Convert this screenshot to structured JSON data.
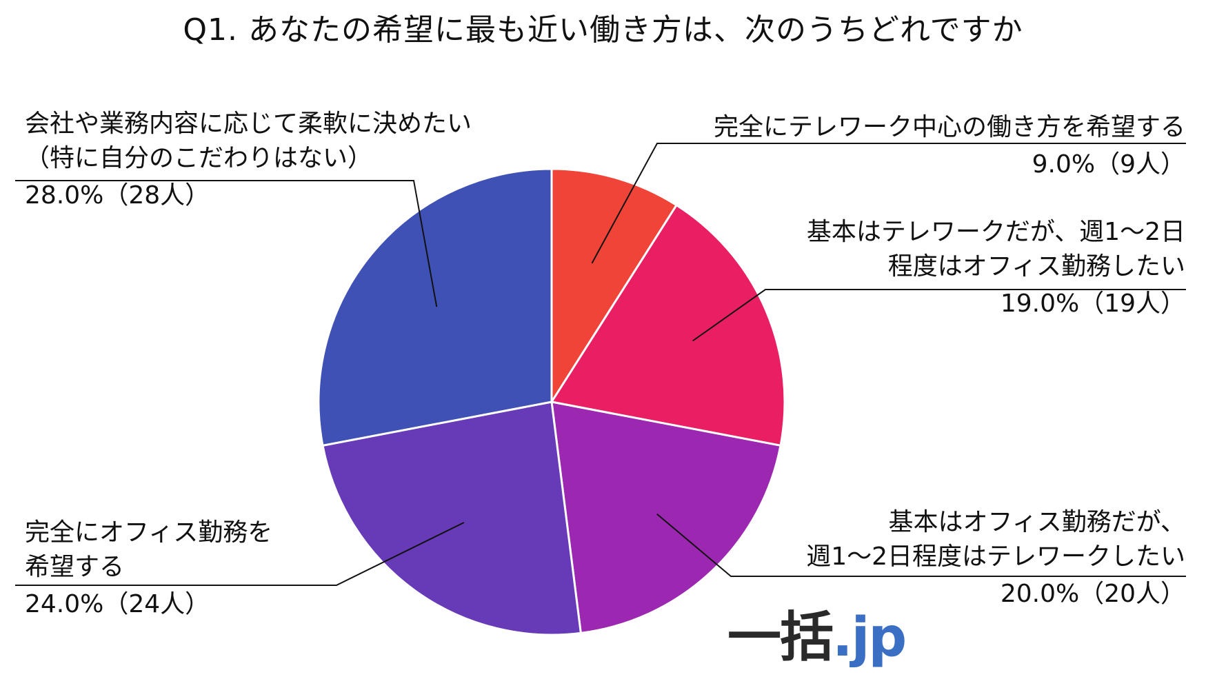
{
  "chart_data": {
    "type": "pie",
    "title": "Q1. あなたの希望に最も近い働き方は、次のうちどれですか",
    "slices": [
      {
        "label_lines": [
          "完全にテレワーク中心の働き方を希望する"
        ],
        "value": 9.0,
        "count": 9,
        "value_label": "9.0%（9人）",
        "color": "#f04438"
      },
      {
        "label_lines": [
          "基本はテレワークだが、週1～2日",
          "程度はオフィス勤務したい"
        ],
        "value": 19.0,
        "count": 19,
        "value_label": "19.0%（19人）",
        "color": "#e91e63"
      },
      {
        "label_lines": [
          "基本はオフィス勤務だが、",
          "週1～2日程度はテレワークしたい"
        ],
        "value": 20.0,
        "count": 20,
        "value_label": "20.0%（20人）",
        "color": "#9c27b0"
      },
      {
        "label_lines": [
          "完全にオフィス勤務を",
          "希望する"
        ],
        "value": 24.0,
        "count": 24,
        "value_label": "24.0%（24人）",
        "color": "#673ab7"
      },
      {
        "label_lines": [
          "会社や業務内容に応じて柔軟に決めたい",
          "（特に自分のこだわりはない）"
        ],
        "value": 28.0,
        "count": 28,
        "value_label": "28.0%（28人）",
        "color": "#3f51b5"
      }
    ],
    "start_angle": "top",
    "direction": "clockwise",
    "legend": "none"
  },
  "brand": {
    "part1": "一括",
    "part2": ".jp",
    "color1": "#2a2a2a",
    "color2": "#3a6fc4"
  }
}
